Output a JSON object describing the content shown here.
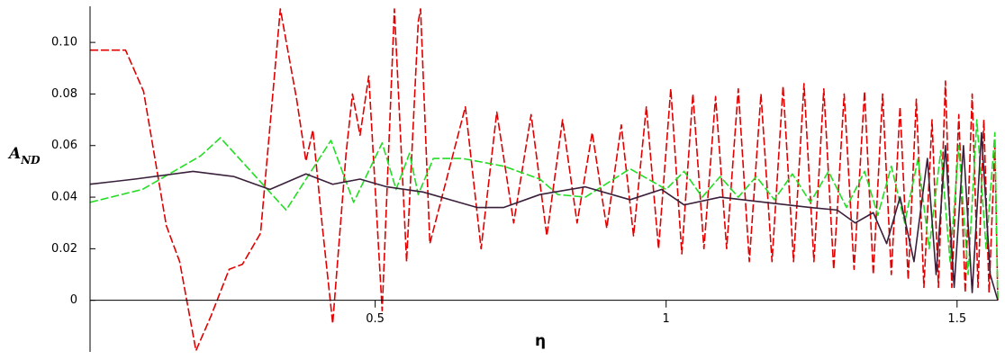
{
  "chart_data": {
    "type": "line",
    "x_label": "η",
    "y_label": "A",
    "y_label_subscript": "ND",
    "xlim": [
      0.01,
      1.57
    ],
    "ylim": [
      -0.02,
      0.114
    ],
    "xticks": [
      0.5,
      1,
      1.5
    ],
    "yticks": [
      0,
      0.02,
      0.04,
      0.06,
      0.08,
      {
        "value": 0.1,
        "label": "0.10"
      }
    ],
    "grid": false,
    "series": [
      {
        "color": "#e00000",
        "dashed": true,
        "x": [
          0.01,
          0.071,
          0.102,
          0.141,
          0.164,
          0.192,
          0.218,
          0.249,
          0.272,
          0.303,
          0.337,
          0.365,
          0.381,
          0.393,
          0.409,
          0.427,
          0.45,
          0.461,
          0.474,
          0.489,
          0.512,
          0.533,
          0.554,
          0.574,
          0.578,
          0.594,
          0.655,
          0.682,
          0.709,
          0.738,
          0.768,
          0.795,
          0.822,
          0.847,
          0.873,
          0.898,
          0.923,
          0.944,
          0.966,
          0.987,
          1.008,
          1.027,
          1.046,
          1.065,
          1.085,
          1.104,
          1.124,
          1.143,
          1.163,
          1.182,
          1.201,
          1.219,
          1.237,
          1.254,
          1.271,
          1.288,
          1.306,
          1.323,
          1.341,
          1.356,
          1.372,
          1.387,
          1.402,
          1.416,
          1.43,
          1.443,
          1.457,
          1.468,
          1.48,
          1.491,
          1.503,
          1.514,
          1.526,
          1.536,
          1.546,
          1.555,
          1.565,
          1.57
        ],
        "values": [
          0.097,
          0.097,
          0.081,
          0.029,
          0.015,
          -0.0195,
          -0.006,
          0.012,
          0.014,
          0.026,
          0.113,
          0.078,
          0.054,
          0.066,
          0.029,
          -0.009,
          0.057,
          0.08,
          0.064,
          0.087,
          -0.004,
          0.113,
          0.015,
          0.108,
          0.113,
          0.022,
          0.075,
          0.02,
          0.073,
          0.03,
          0.072,
          0.025,
          0.07,
          0.03,
          0.065,
          0.028,
          0.068,
          0.025,
          0.075,
          0.02,
          0.082,
          0.018,
          0.08,
          0.02,
          0.079,
          0.02,
          0.082,
          0.015,
          0.08,
          0.015,
          0.083,
          0.015,
          0.084,
          0.015,
          0.082,
          0.012,
          0.08,
          0.012,
          0.081,
          0.01,
          0.08,
          0.01,
          0.075,
          0.008,
          0.078,
          0.005,
          0.07,
          0.005,
          0.085,
          0.005,
          0.072,
          0.003,
          0.08,
          0.005,
          0.07,
          0.003,
          0.06,
          0.0
        ]
      },
      {
        "color": "#22dd22",
        "dashed": true,
        "x": [
          0.01,
          0.1,
          0.2,
          0.234,
          0.347,
          0.424,
          0.463,
          0.512,
          0.536,
          0.559,
          0.574,
          0.6,
          0.65,
          0.721,
          0.783,
          0.814,
          0.861,
          0.938,
          1.0,
          1.031,
          1.062,
          1.093,
          1.124,
          1.155,
          1.186,
          1.217,
          1.248,
          1.279,
          1.31,
          1.341,
          1.364,
          1.387,
          1.41,
          1.433,
          1.452,
          1.472,
          1.488,
          1.503,
          1.519,
          1.534,
          1.55,
          1.565,
          1.57
        ],
        "values": [
          0.038,
          0.043,
          0.056,
          0.063,
          0.035,
          0.062,
          0.038,
          0.061,
          0.043,
          0.057,
          0.041,
          0.055,
          0.055,
          0.052,
          0.047,
          0.041,
          0.04,
          0.051,
          0.043,
          0.05,
          0.04,
          0.048,
          0.04,
          0.048,
          0.039,
          0.049,
          0.038,
          0.05,
          0.036,
          0.05,
          0.033,
          0.052,
          0.03,
          0.055,
          0.02,
          0.058,
          0.015,
          0.06,
          0.01,
          0.07,
          0.02,
          0.065,
          0.0
        ]
      },
      {
        "color": "#3a1f3a",
        "dashed": false,
        "x": [
          0.01,
          0.087,
          0.187,
          0.257,
          0.319,
          0.381,
          0.427,
          0.474,
          0.52,
          0.582,
          0.675,
          0.721,
          0.783,
          0.861,
          0.938,
          0.992,
          1.031,
          1.093,
          1.17,
          1.248,
          1.294,
          1.325,
          1.356,
          1.379,
          1.402,
          1.426,
          1.449,
          1.464,
          1.48,
          1.495,
          1.511,
          1.526,
          1.542,
          1.557,
          1.57
        ],
        "values": [
          0.045,
          0.047,
          0.05,
          0.048,
          0.043,
          0.049,
          0.045,
          0.047,
          0.044,
          0.042,
          0.036,
          0.036,
          0.041,
          0.044,
          0.039,
          0.043,
          0.037,
          0.04,
          0.038,
          0.036,
          0.035,
          0.03,
          0.034,
          0.022,
          0.04,
          0.015,
          0.055,
          0.01,
          0.06,
          0.005,
          0.06,
          0.003,
          0.065,
          0.01,
          0.0
        ]
      }
    ]
  }
}
